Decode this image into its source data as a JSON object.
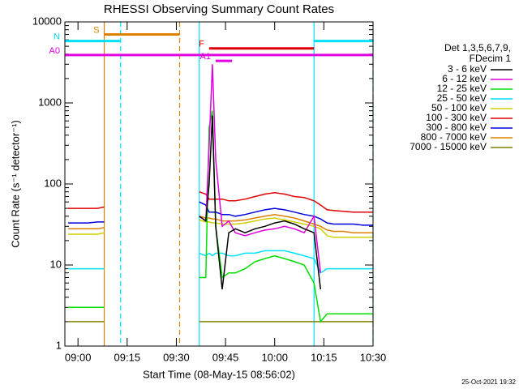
{
  "chart_data": {
    "type": "line",
    "title": "RHESSI Observing Summary Count Rates",
    "x_label": "Start Time (08-May-15 08:56:02)",
    "y_label": "Count Rate (s⁻¹ detector⁻¹)",
    "timestamp": "25-Oct-2021 19:32",
    "legend_title": [
      "Det 1,3,5,6,7,9,",
      "FDecim 1"
    ],
    "log_y": true,
    "ylim": [
      1,
      10000
    ],
    "yticks": [
      1,
      10,
      100,
      1000,
      10000
    ],
    "xlim": [
      "08:56",
      "10:30"
    ],
    "xticks": [
      "09:00",
      "09:15",
      "09:30",
      "09:45",
      "10:00",
      "10:15",
      "10:30"
    ],
    "x": [
      "08:57",
      "09:00",
      "09:03",
      "09:06",
      "09:08",
      "09:20",
      "09:37",
      "09:39",
      "09:40",
      "09:41",
      "09:42",
      "09:44",
      "09:46",
      "09:48",
      "09:51",
      "09:54",
      "09:57",
      "10:00",
      "10:03",
      "10:06",
      "10:09",
      "10:12",
      "10:14",
      "10:16",
      "10:18",
      "10:21",
      "10:24",
      "10:27",
      "10:30"
    ],
    "series": [
      {
        "name": "3 - 6 keV",
        "color": "#000000",
        "values": [
          null,
          null,
          null,
          null,
          null,
          null,
          40,
          35,
          100,
          700,
          30,
          5,
          25,
          28,
          25,
          28,
          30,
          33,
          35,
          32,
          28,
          25,
          5,
          null,
          null,
          null,
          null,
          null,
          null
        ]
      },
      {
        "name": "6 - 12 keV",
        "color": "#e000e0",
        "values": [
          null,
          null,
          null,
          null,
          null,
          null,
          40,
          35,
          300,
          3000,
          200,
          30,
          35,
          25,
          23,
          25,
          27,
          28,
          30,
          28,
          25,
          40,
          8,
          null,
          null,
          null,
          null,
          null,
          null
        ]
      },
      {
        "name": "12 - 25 keV",
        "color": "#00e000",
        "values": [
          3,
          3,
          3,
          3,
          3,
          null,
          7,
          7,
          500,
          800,
          30,
          7,
          8,
          8,
          9,
          11,
          12,
          13,
          12,
          11,
          10,
          6,
          2,
          2.5,
          2.5,
          2.5,
          2.5,
          2.5,
          2.5
        ]
      },
      {
        "name": "25 - 50 keV",
        "color": "#00e0ff",
        "values": [
          9,
          9,
          9,
          9,
          9,
          null,
          14,
          13,
          14,
          13,
          14,
          14,
          13,
          13,
          14,
          14,
          15,
          15,
          15,
          14,
          13,
          12,
          8,
          9,
          9,
          9,
          9,
          9,
          9
        ]
      },
      {
        "name": "50 - 100 keV",
        "color": "#d0d000",
        "values": [
          24,
          24,
          24,
          24,
          25,
          null,
          36,
          34,
          34,
          33,
          33,
          32,
          32,
          32,
          33,
          35,
          37,
          38,
          36,
          34,
          32,
          30,
          28,
          23,
          22,
          22,
          22,
          22,
          22
        ]
      },
      {
        "name": "100 - 300 keV",
        "color": "#e00000",
        "values": [
          50,
          50,
          50,
          50,
          52,
          null,
          80,
          75,
          65,
          65,
          65,
          65,
          62,
          62,
          65,
          70,
          75,
          78,
          75,
          70,
          68,
          62,
          55,
          48,
          47,
          46,
          45,
          45,
          45
        ]
      },
      {
        "name": "300 - 800 keV",
        "color": "#0000e0",
        "values": [
          33,
          33,
          33,
          34,
          34,
          null,
          60,
          55,
          45,
          45,
          45,
          42,
          42,
          40,
          42,
          45,
          48,
          50,
          48,
          45,
          42,
          40,
          37,
          33,
          32,
          32,
          32,
          31,
          31
        ]
      },
      {
        "name": "800 - 7000 keV",
        "color": "#e08000",
        "values": [
          28,
          28,
          28,
          28,
          29,
          null,
          40,
          38,
          38,
          37,
          37,
          35,
          35,
          35,
          36,
          38,
          40,
          42,
          40,
          38,
          35,
          32,
          30,
          27,
          26,
          26,
          25,
          25,
          25
        ]
      },
      {
        "name": "7000 - 15000 keV",
        "color": "#808000",
        "values": [
          2,
          2,
          2,
          2,
          2,
          null,
          2,
          2,
          2,
          2,
          2,
          2,
          2,
          2,
          2,
          2,
          2,
          2,
          2,
          2,
          2,
          2,
          2,
          2,
          2,
          2,
          2,
          2,
          2
        ]
      }
    ],
    "flags": [
      {
        "label": "S",
        "color": "#e08000",
        "start": "09:08",
        "end": "09:31",
        "level": 7000
      },
      {
        "label": "N",
        "color": "#00e0ff",
        "start": "08:56",
        "end": "09:13",
        "level": 5800
      },
      {
        "label": "F",
        "color": "#e00000",
        "start": "09:40",
        "end": "10:12",
        "level": 4700
      },
      {
        "label": "A0",
        "color": "#e000e0",
        "start": "08:56",
        "end": "10:30",
        "level": 3900
      },
      {
        "label": "A1",
        "color": "#e000e0",
        "start": "09:42",
        "end": "09:47",
        "level": 3300
      }
    ],
    "extra_bars": [
      {
        "color": "#00e0ff",
        "start": "10:12",
        "end": "10:30",
        "level": 5800
      }
    ],
    "markers": [
      {
        "x": "09:08",
        "color": "#e08000",
        "dashed": false
      },
      {
        "x": "09:13",
        "color": "#00e0ff",
        "dashed": true
      },
      {
        "x": "09:31",
        "color": "#e08000",
        "dashed": true
      },
      {
        "x": "09:37",
        "color": "#00e0ff",
        "dashed": false
      },
      {
        "x": "10:12",
        "color": "#00e0ff",
        "dashed": false
      },
      {
        "x": "10:30",
        "color": "#00e0ff",
        "dashed": true
      }
    ]
  }
}
